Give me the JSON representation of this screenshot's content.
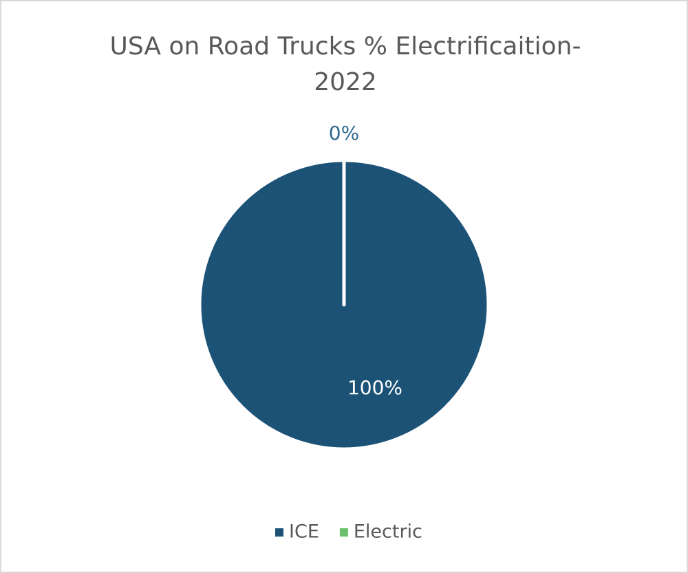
{
  "chart_data": {
    "type": "pie",
    "title": "USA on Road Trucks % Electrificaition-2022",
    "categories": [
      "ICE",
      "Electric"
    ],
    "values": [
      100,
      0
    ],
    "value_labels": [
      "100%",
      "0%"
    ],
    "colors": [
      "#1b5276",
      "#6abf69"
    ],
    "legend": "bottom"
  }
}
